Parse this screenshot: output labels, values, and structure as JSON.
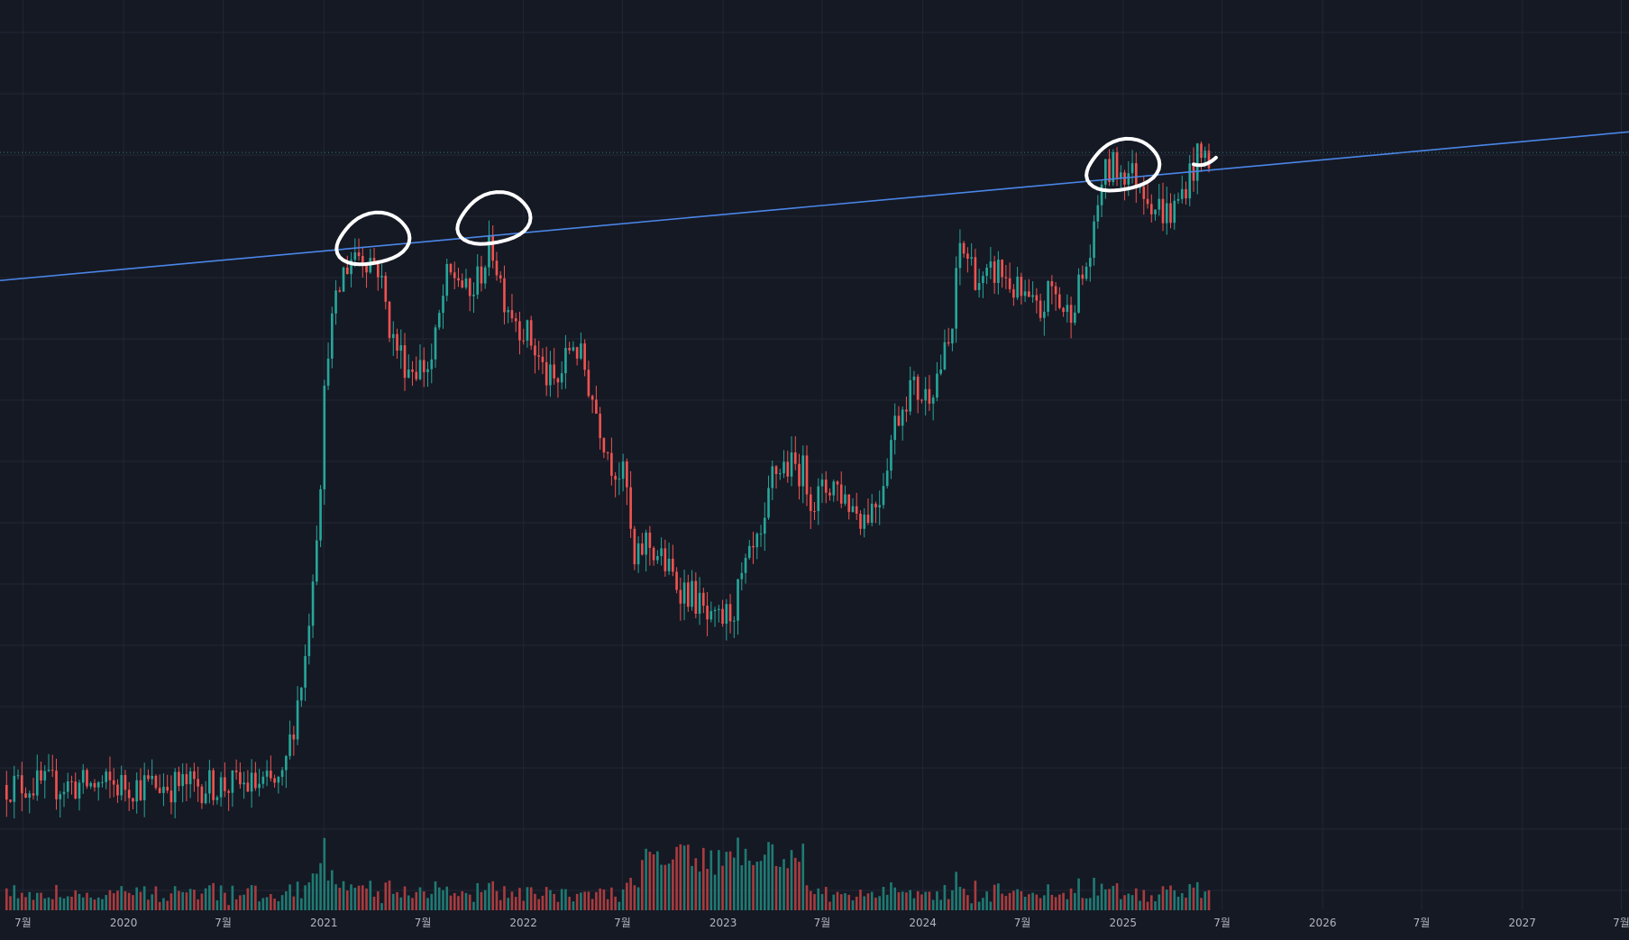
{
  "theme": {
    "background": "#151924",
    "grid": "#212633",
    "up": "#26a69a",
    "down": "#ef5350",
    "up_volume": "#1f7a73",
    "down_volume": "#a83c3f",
    "trendline": "#4a86e8",
    "price_line": "#2d7a72",
    "annotation": "#ffffff",
    "axis_text": "#b2b5be"
  },
  "chart_data": {
    "type": "candlestick",
    "interval": "1W",
    "title": "",
    "xlabel": "",
    "ylabel": "",
    "grid": true,
    "x_range": [
      "2019-05-20",
      "2027-07-15"
    ],
    "y_scale": "log (relative units, price axis not shown)",
    "y_range": [
      1,
      33
    ],
    "time_axis_labels": [
      {
        "date": "2019-07-01",
        "label": "7월"
      },
      {
        "date": "2020-01-01",
        "label": "2020"
      },
      {
        "date": "2020-07-01",
        "label": "7월"
      },
      {
        "date": "2021-01-01",
        "label": "2021"
      },
      {
        "date": "2021-07-01",
        "label": "7월"
      },
      {
        "date": "2022-01-01",
        "label": "2022"
      },
      {
        "date": "2022-07-01",
        "label": "7월"
      },
      {
        "date": "2023-01-01",
        "label": "2023"
      },
      {
        "date": "2023-07-01",
        "label": "7월"
      },
      {
        "date": "2024-01-01",
        "label": "2024"
      },
      {
        "date": "2024-07-01",
        "label": "7월"
      },
      {
        "date": "2025-01-01",
        "label": "2025"
      },
      {
        "date": "2025-07-01",
        "label": "7월"
      },
      {
        "date": "2026-01-01",
        "label": "2026"
      },
      {
        "date": "2026-07-01",
        "label": "7월"
      },
      {
        "date": "2027-01-01",
        "label": "2027"
      },
      {
        "date": "2027-07-01",
        "label": "7월"
      }
    ],
    "price_path": [
      [
        "2019-06-01",
        1.7
      ],
      [
        "2020-10-20",
        1.7
      ],
      [
        "2020-12-01",
        3.0
      ],
      [
        "2020-12-28",
        6.5
      ],
      [
        "2021-01-10",
        12.5
      ],
      [
        "2021-02-08",
        17.5
      ],
      [
        "2021-03-01",
        19.5
      ],
      [
        "2021-04-12",
        18.5
      ],
      [
        "2021-05-10",
        13.0
      ],
      [
        "2021-06-07",
        11.5
      ],
      [
        "2021-07-19",
        11.5
      ],
      [
        "2021-08-16",
        17.0
      ],
      [
        "2021-09-06",
        17.5
      ],
      [
        "2021-09-27",
        15.5
      ],
      [
        "2021-10-25",
        18.5
      ],
      [
        "2021-11-08",
        20.0
      ],
      [
        "2021-11-29",
        16.0
      ],
      [
        "2021-12-20",
        14.5
      ],
      [
        "2022-01-17",
        13.0
      ],
      [
        "2022-02-14",
        11.0
      ],
      [
        "2022-03-07",
        10.5
      ],
      [
        "2022-04-04",
        13.0
      ],
      [
        "2022-04-25",
        11.5
      ],
      [
        "2022-05-16",
        9.5
      ],
      [
        "2022-06-13",
        7.5
      ],
      [
        "2022-07-11",
        6.8
      ],
      [
        "2022-07-25",
        4.5
      ],
      [
        "2022-08-15",
        5.2
      ],
      [
        "2022-09-12",
        4.8
      ],
      [
        "2022-10-10",
        4.3
      ],
      [
        "2022-11-14",
        4.0
      ],
      [
        "2022-12-12",
        3.5
      ],
      [
        "2023-01-02",
        3.6
      ],
      [
        "2023-01-23",
        3.8
      ],
      [
        "2023-02-13",
        4.5
      ],
      [
        "2023-03-06",
        5.0
      ],
      [
        "2023-03-20",
        5.2
      ],
      [
        "2023-04-03",
        7.0
      ],
      [
        "2023-04-24",
        7.3
      ],
      [
        "2023-05-29",
        7.2
      ],
      [
        "2023-06-19",
        6.2
      ],
      [
        "2023-07-24",
        6.8
      ],
      [
        "2023-08-21",
        6.2
      ],
      [
        "2023-09-18",
        5.8
      ],
      [
        "2023-10-16",
        6.3
      ],
      [
        "2023-11-13",
        8.8
      ],
      [
        "2023-12-11",
        10.5
      ],
      [
        "2024-01-08",
        10.0
      ],
      [
        "2024-01-29",
        11.0
      ],
      [
        "2024-02-26",
        13.0
      ],
      [
        "2024-03-11",
        20.0
      ],
      [
        "2024-04-01",
        18.5
      ],
      [
        "2024-04-22",
        16.5
      ],
      [
        "2024-05-20",
        18.0
      ],
      [
        "2024-06-17",
        16.5
      ],
      [
        "2024-07-08",
        15.5
      ],
      [
        "2024-08-05",
        14.5
      ],
      [
        "2024-08-26",
        16.5
      ],
      [
        "2024-09-23",
        14.5
      ],
      [
        "2024-10-21",
        17.0
      ],
      [
        "2024-11-11",
        20.0
      ],
      [
        "2024-11-25",
        27.0
      ],
      [
        "2024-12-16",
        28.5
      ],
      [
        "2025-01-13",
        28.0
      ],
      [
        "2025-02-10",
        26.5
      ],
      [
        "2025-03-03",
        24.0
      ],
      [
        "2025-03-31",
        23.0
      ],
      [
        "2025-04-14",
        24.0
      ],
      [
        "2025-04-28",
        26.5
      ],
      [
        "2025-05-19",
        29.5
      ],
      [
        "2025-06-09",
        30.0
      ]
    ],
    "annotations": [
      {
        "type": "trendline",
        "from": [
          "2019-05-20",
          17.0
        ],
        "to": [
          "2027-07-15",
          33.5
        ]
      },
      {
        "type": "horizontal_dotted_line",
        "value": 30.5
      },
      {
        "type": "hand_drawn_circle",
        "center": [
          "2021-04-01",
          20.5
        ]
      },
      {
        "type": "hand_drawn_circle",
        "center": [
          "2021-11-08",
          22.5
        ]
      },
      {
        "type": "hand_drawn_circle",
        "center": [
          "2025-01-01",
          28.7
        ]
      },
      {
        "type": "hand_drawn_dash",
        "from": [
          "2025-05-10",
          28.9
        ],
        "to": [
          "2025-06-20",
          29.3
        ]
      }
    ]
  }
}
